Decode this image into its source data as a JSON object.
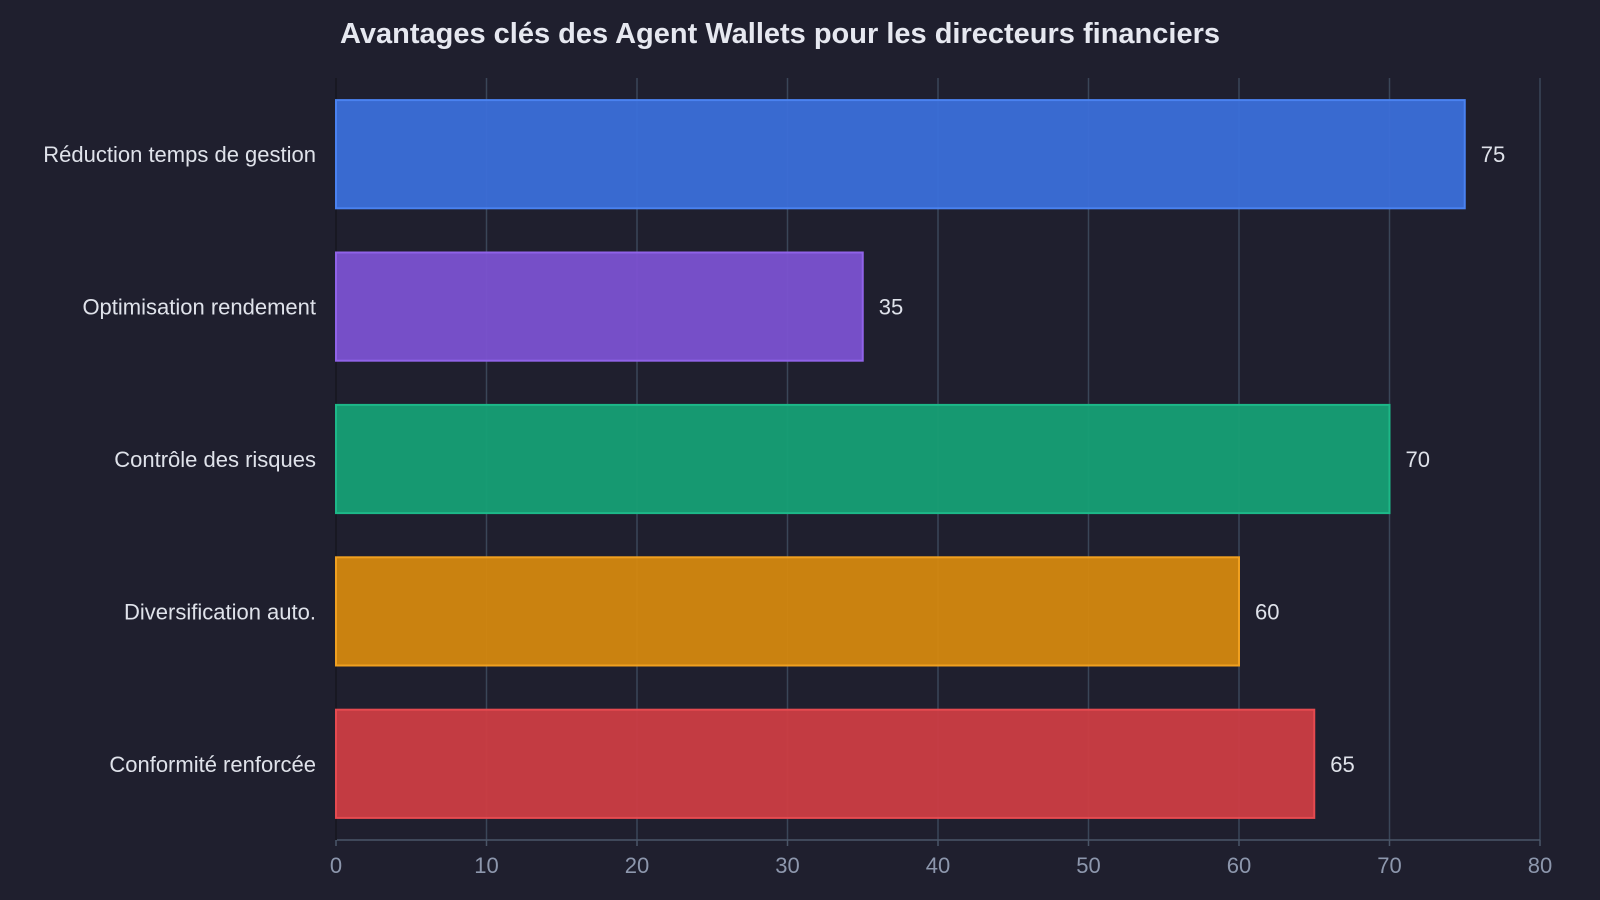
{
  "chart_data": {
    "type": "bar",
    "orientation": "horizontal",
    "title": "Avantages clés des Agent Wallets pour les directeurs financiers",
    "xlabel": "",
    "ylabel": "",
    "xlim": [
      0,
      80
    ],
    "ticks": [
      0,
      10,
      20,
      30,
      40,
      50,
      60,
      70,
      80
    ],
    "grid": true,
    "categories": [
      "Réduction temps de gestion",
      "Optimisation rendement",
      "Contrôle des risques",
      "Diversification auto.",
      "Conformité renforcée"
    ],
    "values": [
      75,
      35,
      70,
      60,
      65
    ],
    "colors": [
      "#3b6fd9",
      "#7b52d1",
      "#16a075",
      "#d4880f",
      "#cc3d43"
    ],
    "border_colors": [
      "#4a82f0",
      "#9063e8",
      "#1db888",
      "#f0a020",
      "#e54a50"
    ]
  },
  "theme": {
    "background": "#1f1f2e",
    "grid_color": "#3a4658",
    "axis_color": "#4a5668"
  }
}
